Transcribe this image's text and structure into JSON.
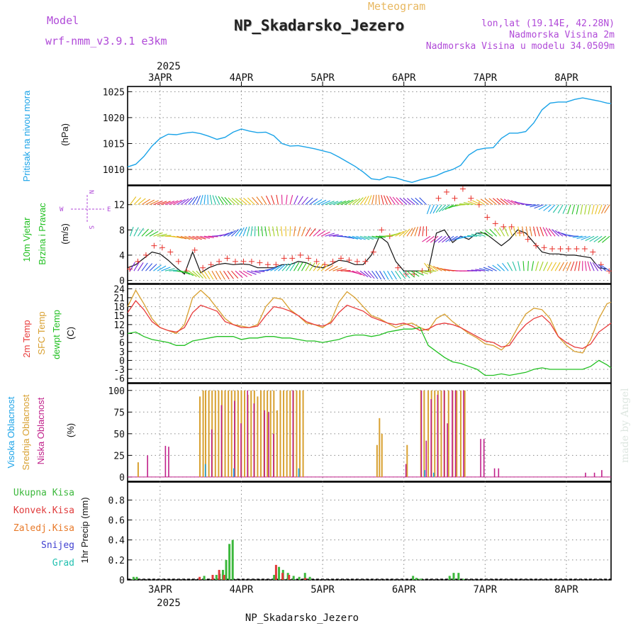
{
  "header": {
    "model_label": "Model",
    "model_name": "wrf-nmm_v3.9.1 e3km",
    "meteogram_label": "Meteogram",
    "station": "NP_Skadarsko_Jezero",
    "lonlat": "lon,lat (19.14E, 42.28N)",
    "altitude": "Nadmorska Visina 2m",
    "model_altitude": "Nadmorska Visina u modelu 34.0509m",
    "footer_station": "NP_Skadarsko_Jezero",
    "watermark": "made by Angel"
  },
  "colors": {
    "pressure": "#1aa3e8",
    "temp2m": "#e83b3b",
    "sfc": "#d8a030",
    "dewpt": "#22c022",
    "high": "#1aa3e8",
    "mid": "#d8a030",
    "low": "#c0208a",
    "total": "#3cb83c",
    "conv": "#e03b3b",
    "frozen": "#e87a2a",
    "snow": "#4040d0",
    "graupel": "#22c0b0",
    "purple": "#b04ad8"
  },
  "chart_data": {
    "type": "meteogram",
    "time_axis": {
      "year": "2025",
      "start_day": 2.6,
      "end_day": 8.55,
      "top_labels": [
        "3APR",
        "4APR",
        "5APR",
        "6APR",
        "7APR",
        "8APR"
      ],
      "bottom_labels": [
        "3APR",
        "4APR",
        "5APR",
        "6APR",
        "7APR",
        "8APR"
      ],
      "label_days": [
        3,
        4,
        5,
        6,
        7,
        8
      ]
    },
    "pressure": {
      "ylabel_line1": "Pritisak na nivou mora",
      "unit": "(hPa)",
      "ylim": [
        1007,
        1026
      ],
      "ticks": [
        "1010",
        "1015",
        "1020",
        "1025"
      ],
      "tick_values": [
        1010,
        1015,
        1020,
        1025
      ],
      "days": [
        2.6,
        2.7,
        2.8,
        2.9,
        3.0,
        3.1,
        3.2,
        3.3,
        3.4,
        3.5,
        3.6,
        3.7,
        3.8,
        3.9,
        4.0,
        4.1,
        4.2,
        4.3,
        4.4,
        4.5,
        4.6,
        4.7,
        4.8,
        4.9,
        5.0,
        5.1,
        5.2,
        5.3,
        5.4,
        5.5,
        5.6,
        5.7,
        5.8,
        5.9,
        6.0,
        6.1,
        6.2,
        6.3,
        6.4,
        6.5,
        6.6,
        6.7,
        6.8,
        6.9,
        7.0,
        7.1,
        7.2,
        7.3,
        7.4,
        7.5,
        7.6,
        7.7,
        7.8,
        7.9,
        8.0,
        8.1,
        8.2,
        8.3,
        8.4,
        8.5,
        8.55
      ],
      "values": [
        1010.5,
        1011,
        1012.5,
        1014.5,
        1016,
        1016.8,
        1016.7,
        1017,
        1017.2,
        1016.9,
        1016.4,
        1015.8,
        1016.2,
        1017.2,
        1017.8,
        1017.4,
        1017.1,
        1017.2,
        1016.5,
        1015,
        1014.5,
        1014.6,
        1014.3,
        1014,
        1013.6,
        1013.2,
        1012.4,
        1011.5,
        1010.6,
        1009.5,
        1008.2,
        1008,
        1008.6,
        1008.4,
        1007.9,
        1007.5,
        1008,
        1008.4,
        1008.8,
        1009.5,
        1010,
        1010.8,
        1012.8,
        1013.8,
        1014.1,
        1014.2,
        1016,
        1017,
        1017,
        1017.3,
        1019,
        1021.5,
        1022.8,
        1023,
        1023,
        1023.5,
        1023.8,
        1023.5,
        1023.2,
        1022.8,
        1022.7
      ]
    },
    "wind": {
      "ylabel_line1": "10m Vjetar",
      "ylabel_line2": "Brzina i Pravac",
      "unit": "(m/s)",
      "ylim": [
        -0.5,
        15
      ],
      "ticks": [
        "0",
        "4",
        "8",
        "12"
      ],
      "tick_values": [
        0,
        4,
        8,
        12
      ],
      "compass": {
        "n": "N",
        "s": "S",
        "e": "E",
        "w": "W"
      },
      "days": [
        2.6,
        2.7,
        2.8,
        2.9,
        3.0,
        3.1,
        3.2,
        3.3,
        3.4,
        3.5,
        3.6,
        3.7,
        3.8,
        3.9,
        4.0,
        4.1,
        4.2,
        4.3,
        4.4,
        4.5,
        4.6,
        4.7,
        4.8,
        4.9,
        5.0,
        5.1,
        5.2,
        5.3,
        5.4,
        5.5,
        5.6,
        5.7,
        5.8,
        5.9,
        6.0,
        6.1,
        6.2,
        6.3,
        6.4,
        6.5,
        6.6,
        6.7,
        6.8,
        6.9,
        7.0,
        7.1,
        7.2,
        7.3,
        7.4,
        7.5,
        7.6,
        7.7,
        7.8,
        7.9,
        8.0,
        8.1,
        8.2,
        8.3,
        8.4,
        8.5
      ],
      "speed": [
        2,
        2.5,
        3.5,
        4.5,
        4.2,
        3.2,
        2,
        1,
        4.5,
        1.2,
        2,
        2.5,
        2.7,
        2.5,
        2.6,
        2.5,
        2,
        2,
        2,
        2.5,
        2.5,
        3,
        2.8,
        2.2,
        2,
        2.5,
        3.2,
        3,
        2.5,
        2.5,
        4,
        7,
        6,
        3,
        1.5,
        1.5,
        1.5,
        1.5,
        7.5,
        8,
        6,
        7,
        6.5,
        7.5,
        7.5,
        6.5,
        5.5,
        6.5,
        8,
        7.5,
        6,
        4.5,
        4.2,
        4.2,
        4,
        4,
        3.8,
        3.6,
        2,
        1.8
      ],
      "gust": [
        1.8,
        3,
        4,
        5.5,
        5.2,
        4.5,
        3,
        1.5,
        4.8,
        2,
        2.5,
        3,
        3.5,
        3,
        3,
        3,
        2.8,
        2.5,
        2.5,
        3.5,
        3.5,
        4,
        3.5,
        3,
        2.5,
        3,
        3.5,
        3.2,
        3,
        3,
        4.5,
        8,
        7,
        2,
        1,
        1,
        1.5,
        1.5,
        13,
        14,
        13,
        14.5,
        13,
        12,
        10,
        9,
        8.5,
        8.5,
        7.5,
        6.5,
        5.5,
        5.2,
        5,
        5,
        5,
        5,
        5,
        4.5,
        2.5,
        1.5
      ]
    },
    "temperature": {
      "ylabel_line1": "2m Temp",
      "ylabel_line2": "SFC Temp",
      "ylabel_line3": "dewpt Temp",
      "unit": "(C)",
      "ylim": [
        -7.5,
        25.5
      ],
      "ticks": [
        "24",
        "21",
        "18",
        "15",
        "12",
        "9",
        "6",
        "3",
        "0",
        "-3",
        "-6"
      ],
      "tick_values": [
        24,
        21,
        18,
        15,
        12,
        9,
        6,
        3,
        0,
        -3,
        -6
      ],
      "days": [
        2.6,
        2.7,
        2.8,
        2.9,
        3.0,
        3.1,
        3.2,
        3.3,
        3.4,
        3.5,
        3.6,
        3.7,
        3.8,
        3.9,
        4.0,
        4.1,
        4.2,
        4.3,
        4.4,
        4.5,
        4.6,
        4.7,
        4.8,
        4.9,
        5.0,
        5.1,
        5.2,
        5.3,
        5.4,
        5.5,
        5.6,
        5.7,
        5.8,
        5.9,
        6.0,
        6.1,
        6.2,
        6.3,
        6.4,
        6.5,
        6.6,
        6.7,
        6.8,
        6.9,
        7.0,
        7.1,
        7.2,
        7.3,
        7.4,
        7.5,
        7.6,
        7.7,
        7.8,
        7.9,
        8.0,
        8.1,
        8.2,
        8.3,
        8.4,
        8.5,
        8.55
      ],
      "t2m": [
        16,
        20,
        17,
        13,
        11,
        10,
        9.5,
        11,
        16,
        18.5,
        17.5,
        16.5,
        13,
        12,
        11,
        11,
        11.5,
        15,
        18,
        17.5,
        16.5,
        15,
        13,
        12,
        11.5,
        12.5,
        16,
        18.5,
        17.5,
        16.5,
        14.5,
        13.5,
        12.5,
        12,
        12.5,
        11.5,
        10,
        10.5,
        12,
        12.5,
        12,
        11,
        9.5,
        8,
        6.5,
        6,
        4.5,
        5,
        9,
        12,
        14,
        15,
        12.5,
        8,
        6,
        4.5,
        4,
        5.5,
        9.5,
        11.5,
        12.5
      ],
      "sfc": [
        18,
        23.5,
        19,
        14,
        11,
        10,
        9,
        12,
        21,
        23.5,
        21,
        17.5,
        14,
        12,
        11.5,
        11,
        12,
        18,
        21,
        20.5,
        17,
        15,
        12.5,
        12,
        11,
        13,
        19.5,
        23,
        21,
        18,
        15,
        14,
        12.5,
        11,
        12,
        12.5,
        11,
        10,
        14,
        15.5,
        13,
        11,
        9,
        7.5,
        5.5,
        5,
        3.5,
        6,
        11,
        15.5,
        17.5,
        17,
        14,
        8,
        5,
        3,
        2.5,
        7,
        14,
        19,
        19.5
      ],
      "dew": [
        9,
        9.5,
        8,
        7,
        6.5,
        6,
        5,
        5,
        6.5,
        7,
        7.5,
        8,
        8,
        8,
        7,
        7.5,
        7.5,
        8,
        8,
        7.5,
        7.5,
        7,
        6.5,
        6.5,
        6,
        6.5,
        7,
        8,
        8.5,
        8.5,
        8,
        8.5,
        9.5,
        10,
        10.5,
        10.5,
        11,
        5,
        3,
        1,
        -0.5,
        -1,
        -2,
        -3,
        -5,
        -5,
        -4.5,
        -5,
        -4.5,
        -4,
        -3,
        -2.5,
        -3,
        -3,
        -3,
        -3,
        -3,
        -2,
        0,
        -1.5,
        -2.5
      ]
    },
    "clouds": {
      "ylabel_line1": "Visoka Oblacnost",
      "ylabel_line2": "Srednja Oblacnost",
      "ylabel_line3": "Niska Oblacnost",
      "unit": "(%)",
      "ylim": [
        -5,
        108
      ],
      "ticks": [
        "100",
        "75",
        "50",
        "25",
        "0"
      ],
      "tick_values": [
        100,
        75,
        50,
        25,
        0
      ],
      "mid_days": [
        2.73,
        3.49,
        3.53,
        3.56,
        3.6,
        3.64,
        3.68,
        3.72,
        3.76,
        3.8,
        3.84,
        3.88,
        3.92,
        3.96,
        4.0,
        4.04,
        4.08,
        4.12,
        4.16,
        4.2,
        4.24,
        4.28,
        4.32,
        4.36,
        4.4,
        4.44,
        4.48,
        4.52,
        4.56,
        4.6,
        4.64,
        4.68,
        4.72,
        4.76,
        5.67,
        5.7,
        5.73,
        6.04,
        6.21,
        6.25,
        6.3,
        6.34,
        6.38,
        6.42,
        6.46,
        6.5,
        6.55,
        6.6,
        6.65,
        6.7,
        6.75
      ],
      "mid_values": [
        17,
        93,
        100,
        100,
        100,
        100,
        100,
        100,
        100,
        100,
        100,
        100,
        100,
        100,
        100,
        100,
        95,
        100,
        100,
        93,
        100,
        100,
        100,
        100,
        100,
        77,
        100,
        100,
        100,
        100,
        100,
        100,
        100,
        100,
        37,
        68,
        50,
        37,
        100,
        100,
        100,
        100,
        100,
        100,
        100,
        100,
        100,
        100,
        100,
        100,
        100
      ],
      "low_days": [
        2.83,
        3.05,
        3.09,
        3.62,
        3.74,
        3.9,
        3.98,
        4.06,
        4.14,
        4.27,
        4.32,
        4.38,
        4.62,
        6.01,
        6.2,
        6.26,
        6.32,
        6.4,
        6.48,
        6.52,
        6.58,
        6.62,
        6.72,
        6.93,
        6.97,
        7.1,
        7.15,
        8.22,
        8.33,
        8.42
      ],
      "low_values": [
        25,
        36,
        35,
        55,
        83,
        88,
        62,
        100,
        85,
        77,
        75,
        50,
        100,
        15,
        100,
        42,
        90,
        95,
        100,
        62,
        100,
        100,
        100,
        44,
        44,
        10,
        10,
        5,
        5,
        8
      ],
      "high_days": [
        3.55,
        3.9,
        4.7,
        6.25,
        6.36
      ],
      "high_values": [
        15,
        10,
        10,
        8,
        5
      ]
    },
    "precip": {
      "legend": [
        "Ukupna Kisa",
        "Konvek.Kisa",
        "Zaledj.Kisa",
        "Snijeg",
        "Grad"
      ],
      "ylabel": "1hr Precip (mm)",
      "ylim": [
        0,
        0.98
      ],
      "ticks": [
        "0",
        "0.2",
        "0.4",
        "0.6",
        "0.8"
      ],
      "tick_values": [
        0,
        0.2,
        0.4,
        0.6,
        0.8
      ],
      "total_days": [
        2.66,
        2.7,
        3.53,
        3.68,
        3.72,
        3.76,
        3.8,
        3.84,
        3.88,
        4.39,
        4.45,
        4.5,
        4.56,
        4.63,
        4.7,
        4.77,
        4.83,
        6.1,
        6.14,
        6.18,
        6.2,
        6.55,
        6.6,
        6.66,
        6.72
      ],
      "total_values": [
        0.03,
        0.03,
        0.04,
        0.05,
        0.06,
        0.1,
        0.2,
        0.36,
        0.4,
        0.05,
        0.13,
        0.1,
        0.07,
        0.04,
        0.03,
        0.07,
        0.03,
        0.04,
        0.02,
        0.01,
        0.01,
        0.04,
        0.07,
        0.07,
        0.01
      ],
      "conv_days": [
        3.5,
        3.66,
        3.74,
        3.8,
        4.44,
        4.52,
        4.6,
        4.8
      ],
      "conv_values": [
        0.03,
        0.05,
        0.1,
        0.05,
        0.15,
        0.07,
        0.05,
        0.02
      ]
    }
  }
}
